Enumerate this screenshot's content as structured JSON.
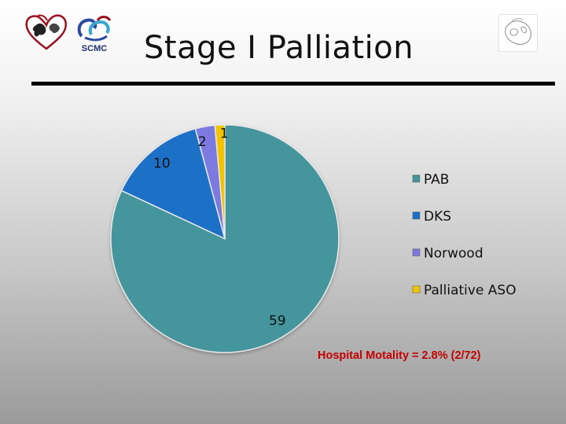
{
  "slide": {
    "title": "Stage I Palliation",
    "note": "Hospital Motality = 2.8% (2/72)",
    "logos": {
      "left_emblem": "heart-globe-logo",
      "center_logo_text": "SCMC",
      "right_emblem": "globe-outline-logo"
    }
  },
  "chart_data": {
    "type": "pie",
    "categories": [
      "PAB",
      "DKS",
      "Norwood",
      "Palliative ASO"
    ],
    "values": [
      59,
      10,
      2,
      1
    ],
    "colors": [
      "#45959d",
      "#1a6fc6",
      "#7c7ae0",
      "#f2c400"
    ],
    "legend_position": "right",
    "data_labels": [
      "59",
      "10",
      "2",
      "1"
    ]
  }
}
